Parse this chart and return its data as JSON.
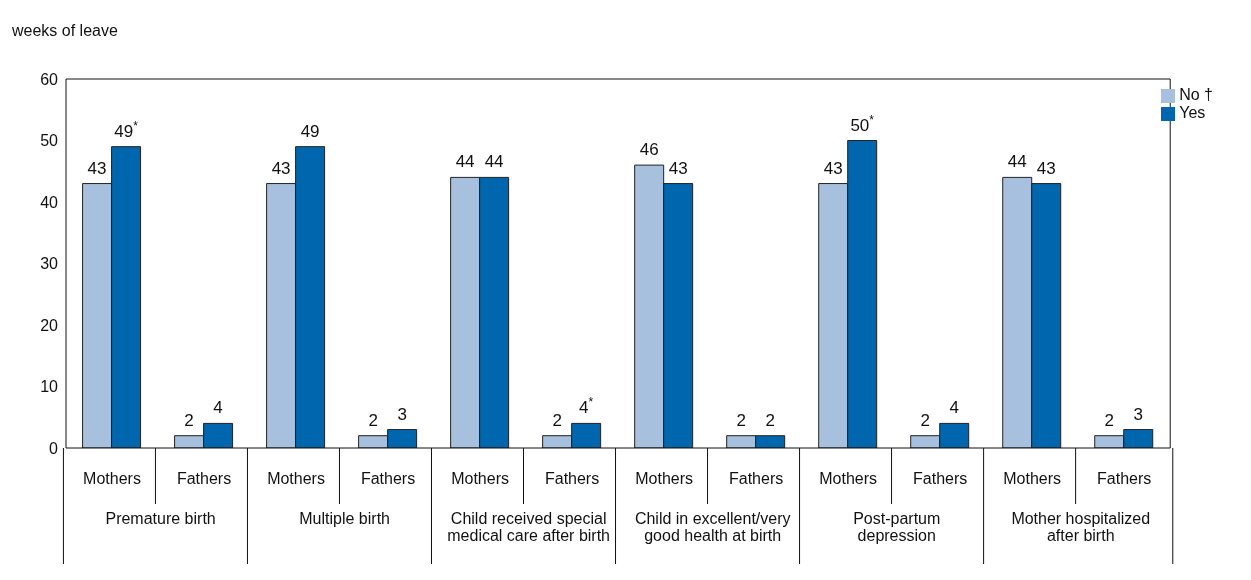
{
  "chart_data": {
    "type": "bar",
    "ylabel": "weeks of leave",
    "categories": [
      "Mothers",
      "Fathers",
      "Mothers",
      "Fathers",
      "Mothers",
      "Fathers",
      "Mothers",
      "Fathers",
      "Mothers",
      "Fathers",
      "Mothers",
      "Fathers"
    ],
    "annotations": [
      "Premature birth",
      "Multiple birth",
      "Child received special\nmedical care after birth",
      "Child in excellent/very\ngood health at birth",
      "Post-partum\ndepression",
      "Mother hospitalized\nafter birth"
    ],
    "series": [
      {
        "name": "No †",
        "color": "#a7c0de",
        "values": [
          43,
          2,
          43,
          2,
          44,
          2,
          46,
          2,
          43,
          2,
          44,
          2
        ]
      },
      {
        "name": "Yes",
        "color": "#0066ad",
        "values": [
          49,
          4,
          49,
          3,
          44,
          4,
          43,
          2,
          50,
          4,
          43,
          3
        ],
        "value_labels": [
          "49$^{*}$",
          "4",
          "49",
          "3",
          "44",
          "4$^{*}$",
          "43",
          "2",
          "50$^{*}$",
          "4",
          "43",
          "3"
        ]
      }
    ],
    "data_labels": true,
    "ylim": [
      0,
      60
    ],
    "yticks": [
      0,
      10,
      20,
      30,
      40,
      50,
      60
    ],
    "grid": false,
    "legend": "top right"
  }
}
